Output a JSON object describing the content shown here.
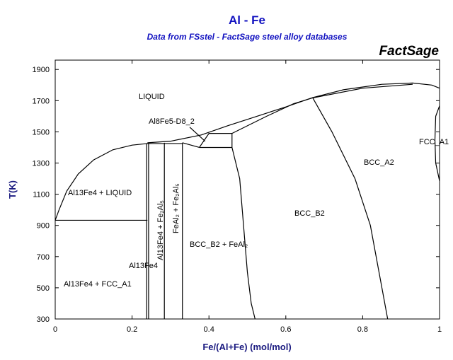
{
  "chart_data": {
    "type": "line",
    "title": "Al - Fe",
    "subtitle": "Data from FSstel - FactSage steel alloy databases",
    "brand": "FactSage",
    "x_label": "Fe/(Al+Fe) (mol/mol)",
    "y_label": "T(K)",
    "xlim": [
      0,
      1
    ],
    "ylim": [
      300,
      1960
    ],
    "xticks": [
      0,
      0.2,
      0.4,
      0.6,
      0.8,
      1
    ],
    "yticks": [
      300,
      500,
      700,
      900,
      1100,
      1300,
      1500,
      1700,
      1900
    ],
    "color": "#000000",
    "series": [
      {
        "x": [
          0,
          0.01,
          0.03,
          0.06,
          0.1,
          0.15,
          0.2,
          0.24
        ],
        "values": [
          933,
          1000,
          1120,
          1230,
          1320,
          1385,
          1415,
          1425
        ]
      },
      {
        "x": [
          0,
          0.24
        ],
        "values": [
          933,
          933
        ]
      },
      {
        "x": [
          0.238,
          0.238
        ],
        "values": [
          300,
          1425
        ]
      },
      {
        "x": [
          0.243,
          0.243
        ],
        "values": [
          300,
          1425
        ]
      },
      {
        "x": [
          0.284,
          0.284
        ],
        "values": [
          300,
          1430
        ]
      },
      {
        "x": [
          0.331,
          0.331
        ],
        "values": [
          300,
          1430
        ]
      },
      {
        "x": [
          0.238,
          0.331
        ],
        "values": [
          1425,
          1425
        ]
      },
      {
        "x": [
          0.24,
          0.3,
          0.38,
          0.45,
          0.5,
          0.6,
          0.67,
          0.75,
          0.85,
          0.93,
          0.98,
          1
        ],
        "values": [
          1430,
          1440,
          1480,
          1540,
          1580,
          1660,
          1720,
          1770,
          1805,
          1813,
          1800,
          1780
        ]
      },
      {
        "x": [
          0.46,
          0.55,
          0.62,
          0.67,
          0.8,
          0.93
        ],
        "values": [
          1490,
          1600,
          1680,
          1718,
          1780,
          1805
        ]
      },
      {
        "x": [
          0.375,
          0.46,
          0.46,
          0.4,
          0.375
        ],
        "values": [
          1400,
          1400,
          1490,
          1490,
          1400
        ]
      },
      {
        "x": [
          0.331,
          0.375
        ],
        "values": [
          1430,
          1400
        ]
      },
      {
        "x": [
          0.35,
          0.39
        ],
        "values": [
          1530,
          1440
        ]
      },
      {
        "x": [
          0.67,
          0.72,
          0.78,
          0.82,
          0.85,
          0.865
        ],
        "values": [
          1718,
          1500,
          1200,
          900,
          500,
          300
        ]
      },
      {
        "x": [
          0.46,
          0.48,
          0.49,
          0.5,
          0.51,
          0.52
        ],
        "values": [
          1400,
          1200,
          900,
          600,
          400,
          300
        ]
      },
      {
        "x": [
          1,
          0.99,
          0.988,
          0.99,
          1
        ],
        "values": [
          1667,
          1600,
          1450,
          1300,
          1185
        ]
      }
    ],
    "annotations": [
      "LIQUID",
      "Al8Fe5-D8_2",
      "Al13Fe4 + LIQUID",
      "Al13Fe4 + Fe₂Al₅",
      "FeAl₂ + Fe₂Al₅",
      "BCC_B2 + FeAl₂",
      "Al13Fe4",
      "Al13Fe4 + FCC_A1",
      "BCC_B2",
      "BCC_A2",
      "FCC_A1"
    ]
  }
}
